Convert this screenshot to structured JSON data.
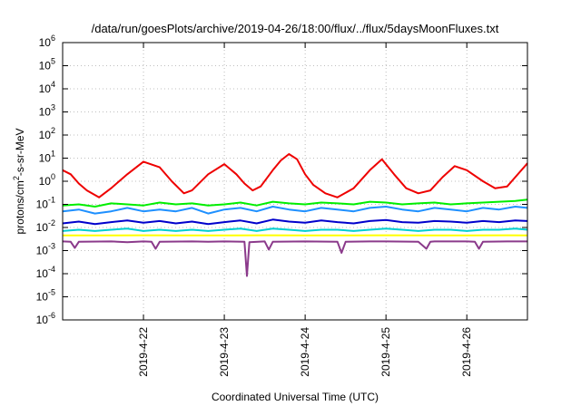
{
  "chart_data": {
    "type": "line",
    "title": "/data/run/goesPlots/archive/2019-04-26/18:00/flux/../flux/5daysMoonFluxes.txt",
    "xlabel": "Coordinated Universal Time (UTC)",
    "ylabel": {
      "base": "protons/cm",
      "sup": "2",
      "rest": "-s-sr-MeV"
    },
    "yscale": "log",
    "ylim": [
      1e-06,
      1000000.0
    ],
    "xlim": [
      21.0,
      26.75
    ],
    "y_ticks": [
      {
        "value": -6,
        "base": "10",
        "exp": "-6"
      },
      {
        "value": -5,
        "base": "10",
        "exp": "-5"
      },
      {
        "value": -4,
        "base": "10",
        "exp": "-4"
      },
      {
        "value": -3,
        "base": "10",
        "exp": "-3"
      },
      {
        "value": -2,
        "base": "10",
        "exp": "-2"
      },
      {
        "value": -1,
        "base": "10",
        "exp": "-1"
      },
      {
        "value": 0,
        "base": "10",
        "exp": "0"
      },
      {
        "value": 1,
        "base": "10",
        "exp": "1"
      },
      {
        "value": 2,
        "base": "10",
        "exp": "2"
      },
      {
        "value": 3,
        "base": "10",
        "exp": "3"
      },
      {
        "value": 4,
        "base": "10",
        "exp": "4"
      },
      {
        "value": 5,
        "base": "10",
        "exp": "5"
      },
      {
        "value": 6,
        "base": "10",
        "exp": "6"
      }
    ],
    "x_ticks": [
      {
        "value": 22,
        "label": "2019-4-22"
      },
      {
        "value": 23,
        "label": "2019-4-23"
      },
      {
        "value": 24,
        "label": "2019-4-24"
      },
      {
        "value": 25,
        "label": "2019-4-25"
      },
      {
        "value": 26,
        "label": "2019-4-26"
      }
    ],
    "grid": true,
    "series": [
      {
        "color": "#ee0000",
        "x": [
          21.0,
          21.1,
          21.2,
          21.3,
          21.45,
          21.6,
          21.8,
          22.0,
          22.2,
          22.35,
          22.5,
          22.6,
          22.8,
          23.0,
          23.15,
          23.25,
          23.35,
          23.45,
          23.6,
          23.7,
          23.8,
          23.9,
          24.0,
          24.1,
          24.25,
          24.4,
          24.6,
          24.8,
          24.95,
          25.1,
          25.25,
          25.4,
          25.55,
          25.7,
          25.85,
          26.0,
          26.2,
          26.35,
          26.5,
          26.6,
          26.75
        ],
        "y": [
          3.0,
          2.0,
          0.8,
          0.4,
          0.2,
          0.5,
          2.0,
          7.0,
          4.0,
          1.0,
          0.3,
          0.4,
          2.0,
          5.5,
          2.0,
          0.8,
          0.4,
          0.6,
          3.0,
          8.0,
          15.0,
          9.0,
          2.0,
          0.7,
          0.3,
          0.2,
          0.5,
          3.0,
          9.0,
          2.0,
          0.5,
          0.3,
          0.4,
          1.5,
          4.5,
          3.0,
          1.0,
          0.5,
          0.6,
          1.5,
          6.0
        ]
      },
      {
        "color": "#00ee00",
        "x": [
          21.0,
          21.2,
          21.4,
          21.6,
          21.8,
          22.0,
          22.2,
          22.4,
          22.6,
          22.8,
          23.0,
          23.2,
          23.4,
          23.6,
          23.8,
          24.0,
          24.2,
          24.4,
          24.6,
          24.8,
          25.0,
          25.2,
          25.4,
          25.6,
          25.8,
          26.0,
          26.2,
          26.4,
          26.6,
          26.75
        ],
        "y": [
          0.09,
          0.1,
          0.08,
          0.11,
          0.1,
          0.09,
          0.12,
          0.1,
          0.11,
          0.09,
          0.1,
          0.12,
          0.09,
          0.13,
          0.11,
          0.1,
          0.12,
          0.11,
          0.1,
          0.13,
          0.12,
          0.1,
          0.11,
          0.12,
          0.1,
          0.11,
          0.12,
          0.13,
          0.14,
          0.16
        ]
      },
      {
        "color": "#1e90ff",
        "x": [
          21.0,
          21.2,
          21.4,
          21.6,
          21.8,
          22.0,
          22.2,
          22.4,
          22.6,
          22.8,
          23.0,
          23.2,
          23.4,
          23.6,
          23.8,
          24.0,
          24.2,
          24.4,
          24.6,
          24.8,
          25.0,
          25.2,
          25.4,
          25.6,
          25.8,
          26.0,
          26.2,
          26.4,
          26.6,
          26.75
        ],
        "y": [
          0.05,
          0.06,
          0.04,
          0.05,
          0.07,
          0.05,
          0.06,
          0.05,
          0.07,
          0.04,
          0.06,
          0.07,
          0.05,
          0.08,
          0.06,
          0.05,
          0.07,
          0.06,
          0.05,
          0.07,
          0.08,
          0.06,
          0.05,
          0.07,
          0.06,
          0.05,
          0.07,
          0.06,
          0.08,
          0.07
        ]
      },
      {
        "color": "#0000cc",
        "x": [
          21.0,
          21.2,
          21.4,
          21.6,
          21.8,
          22.0,
          22.2,
          22.4,
          22.6,
          22.8,
          23.0,
          23.2,
          23.4,
          23.6,
          23.8,
          24.0,
          24.2,
          24.4,
          24.6,
          24.8,
          25.0,
          25.2,
          25.4,
          25.6,
          25.8,
          26.0,
          26.2,
          26.4,
          26.6,
          26.75
        ],
        "y": [
          0.015,
          0.018,
          0.014,
          0.017,
          0.02,
          0.016,
          0.019,
          0.015,
          0.018,
          0.014,
          0.017,
          0.02,
          0.015,
          0.022,
          0.018,
          0.016,
          0.02,
          0.017,
          0.015,
          0.019,
          0.021,
          0.017,
          0.016,
          0.019,
          0.018,
          0.016,
          0.019,
          0.017,
          0.02,
          0.019
        ]
      },
      {
        "color": "#00ced1",
        "x": [
          21.0,
          21.2,
          21.4,
          21.6,
          21.8,
          22.0,
          22.2,
          22.4,
          22.6,
          22.8,
          23.0,
          23.2,
          23.4,
          23.6,
          23.8,
          24.0,
          24.2,
          24.4,
          24.6,
          24.8,
          25.0,
          25.2,
          25.4,
          25.6,
          25.8,
          26.0,
          26.2,
          26.4,
          26.6,
          26.75
        ],
        "y": [
          0.007,
          0.008,
          0.007,
          0.008,
          0.009,
          0.007,
          0.008,
          0.007,
          0.008,
          0.007,
          0.008,
          0.009,
          0.007,
          0.009,
          0.008,
          0.007,
          0.008,
          0.008,
          0.007,
          0.008,
          0.009,
          0.008,
          0.007,
          0.008,
          0.008,
          0.007,
          0.008,
          0.008,
          0.009,
          0.008
        ]
      },
      {
        "color": "#ffff00",
        "x": [
          21.0,
          21.5,
          22.0,
          22.5,
          23.0,
          23.5,
          24.0,
          24.5,
          25.0,
          25.5,
          26.0,
          26.5,
          26.75
        ],
        "y": [
          0.0045,
          0.0045,
          0.0046,
          0.0045,
          0.0045,
          0.0046,
          0.0045,
          0.0045,
          0.0046,
          0.0045,
          0.0045,
          0.0046,
          0.0045
        ]
      },
      {
        "color": "#8b3a8b",
        "x": [
          21.0,
          21.1,
          21.15,
          21.2,
          21.6,
          21.8,
          22.0,
          22.1,
          22.15,
          22.2,
          22.6,
          22.8,
          23.0,
          23.25,
          23.28,
          23.31,
          23.5,
          23.55,
          23.6,
          24.0,
          24.4,
          24.45,
          24.5,
          24.8,
          25.0,
          25.4,
          25.5,
          25.55,
          25.6,
          26.0,
          26.1,
          26.15,
          26.2,
          26.5,
          26.75
        ],
        "y": [
          0.0025,
          0.0024,
          0.0013,
          0.0024,
          0.0025,
          0.0023,
          0.0025,
          0.0024,
          0.0012,
          0.0024,
          0.0025,
          0.0024,
          0.0025,
          0.0024,
          8e-05,
          0.0023,
          0.0025,
          0.0011,
          0.0024,
          0.0025,
          0.0024,
          0.0008,
          0.0024,
          0.0025,
          0.0025,
          0.0024,
          0.0012,
          0.0024,
          0.0025,
          0.0025,
          0.0024,
          0.0012,
          0.0024,
          0.0025,
          0.0025
        ]
      }
    ]
  }
}
